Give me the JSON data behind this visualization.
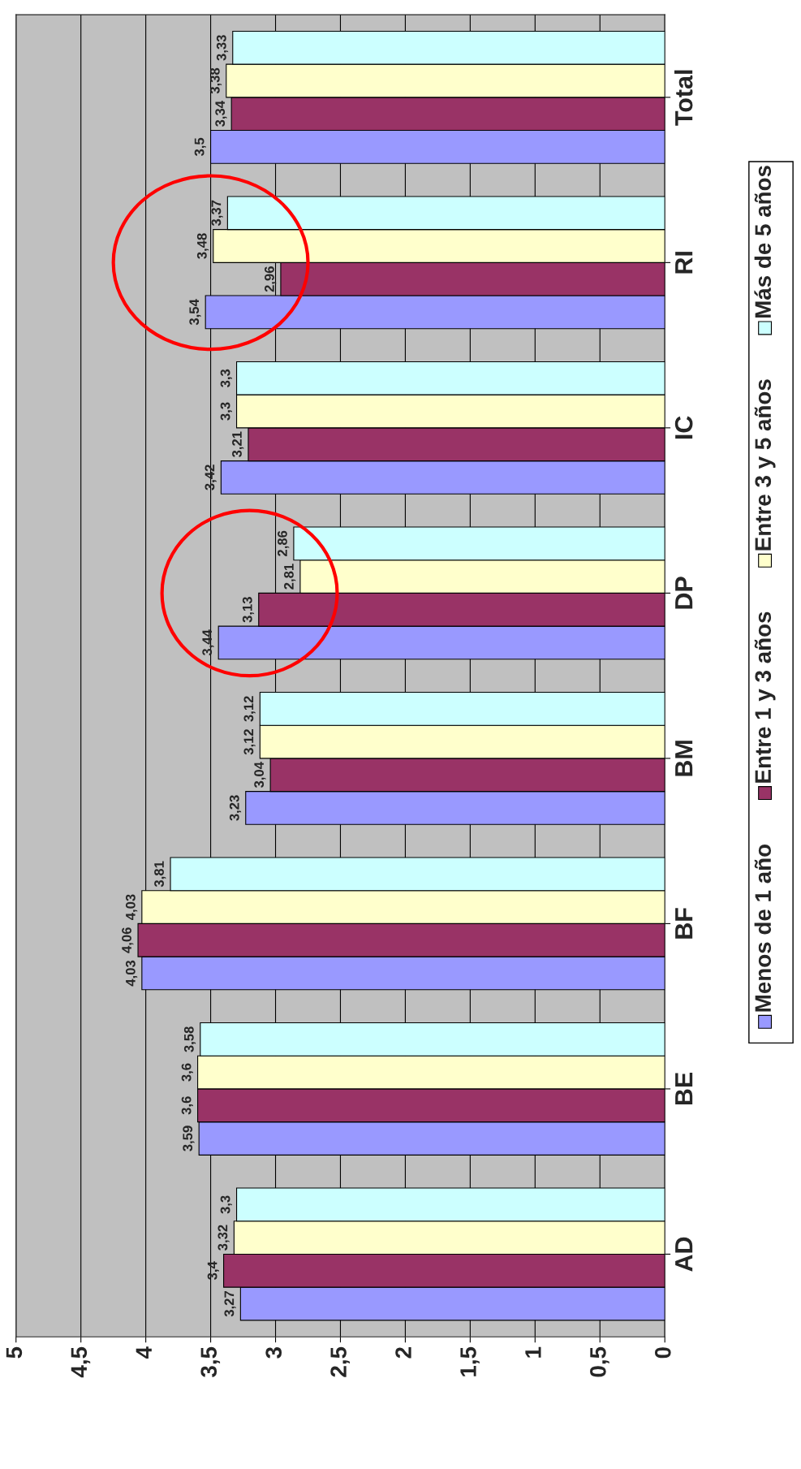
{
  "chart_data": {
    "type": "bar",
    "orientation": "horizontal",
    "categories": [
      "Total",
      "RI",
      "IC",
      "DP",
      "BM",
      "BF",
      "BE",
      "AD"
    ],
    "series": [
      {
        "name": "Menos de 1 año",
        "color": "#9999ff",
        "values": [
          3.5,
          3.54,
          3.42,
          3.44,
          3.23,
          4.03,
          3.59,
          3.27
        ],
        "value_labels": [
          "3,5",
          "3,54",
          "3,42",
          "3,44",
          "3,23",
          "4,03",
          "3,59",
          "3,27"
        ]
      },
      {
        "name": "Entre 1 y 3 años",
        "color": "#993366",
        "values": [
          3.34,
          2.96,
          3.21,
          3.13,
          3.04,
          4.06,
          3.6,
          3.4
        ],
        "value_labels": [
          "3,34",
          "2,96",
          "3,21",
          "3,13",
          "3,04",
          "4,06",
          "3,6",
          "3,4"
        ]
      },
      {
        "name": "Entre 3 y 5 años",
        "color": "#ffffcc",
        "values": [
          3.38,
          3.48,
          3.3,
          2.81,
          3.12,
          4.03,
          3.6,
          3.32
        ],
        "value_labels": [
          "3,38",
          "3,48",
          "3,3",
          "2,81",
          "3,12",
          "4,03",
          "3,6",
          "3,32"
        ]
      },
      {
        "name": "Más de 5 años",
        "color": "#ccffff",
        "values": [
          3.33,
          3.37,
          3.3,
          2.86,
          3.12,
          3.81,
          3.58,
          3.3
        ],
        "value_labels": [
          "3,33",
          "3,37",
          "3,3",
          "2,86",
          "3,12",
          "3,81",
          "3,58",
          "3,3"
        ]
      }
    ],
    "xlim": [
      5,
      0
    ],
    "xticks": [
      {
        "value": 5,
        "label": "5"
      },
      {
        "value": 4.5,
        "label": "4,5"
      },
      {
        "value": 4,
        "label": "4"
      },
      {
        "value": 3.5,
        "label": "3,5"
      },
      {
        "value": 3,
        "label": "3"
      },
      {
        "value": 2.5,
        "label": "2,5"
      },
      {
        "value": 2,
        "label": "2"
      },
      {
        "value": 1.5,
        "label": "1,5"
      },
      {
        "value": 1,
        "label": "1"
      },
      {
        "value": 0.5,
        "label": "0,5"
      },
      {
        "value": 0,
        "label": "0"
      }
    ],
    "grid": "x",
    "legend": "right"
  }
}
